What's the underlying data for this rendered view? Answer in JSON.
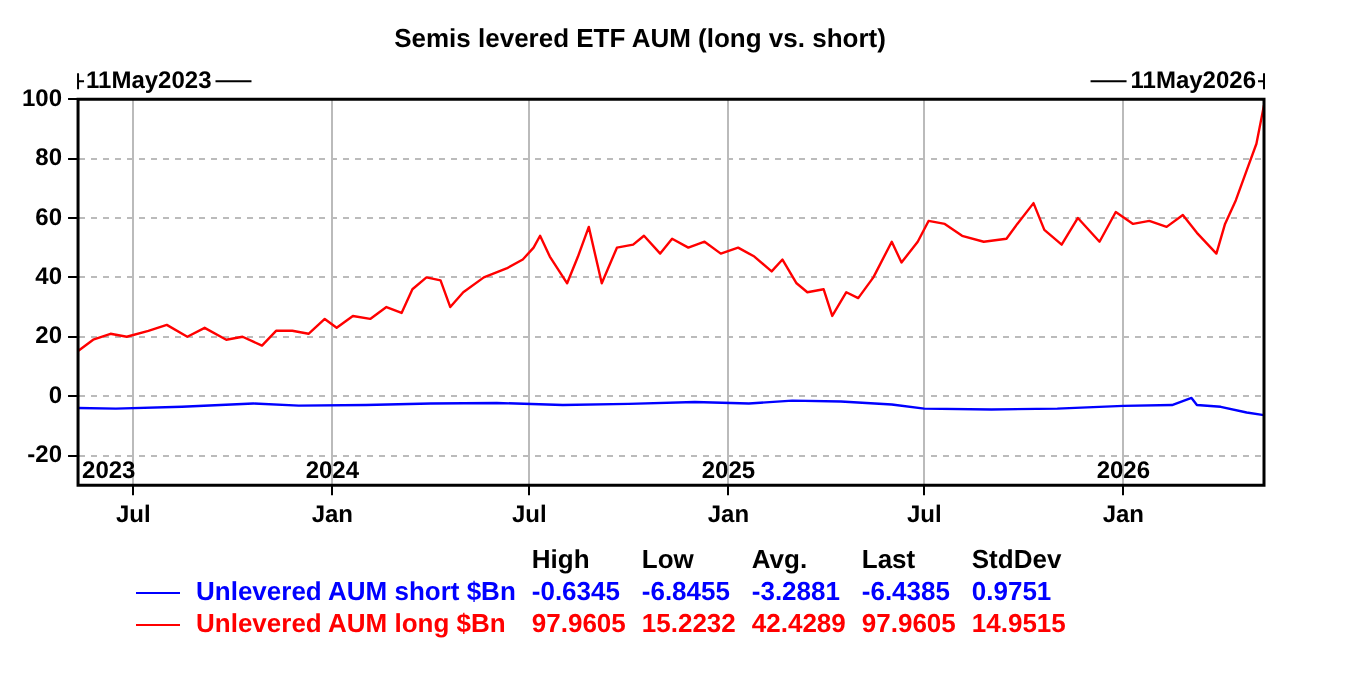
{
  "chart_data": {
    "type": "line",
    "title": "Semis levered ETF AUM (long vs. short)",
    "xlim": [
      "2023-05-11",
      "2026-05-11"
    ],
    "xticks": [
      {
        "value": "2023-07-01",
        "label": "Jul"
      },
      {
        "value": "2024-01-01",
        "label": "Jan"
      },
      {
        "value": "2024-07-01",
        "label": "Jul"
      },
      {
        "value": "2025-01-01",
        "label": "Jan"
      },
      {
        "value": "2025-07-01",
        "label": "Jul"
      },
      {
        "value": "2026-01-01",
        "label": "Jan"
      }
    ],
    "x2lim": [
      "2023-05-11",
      "2026-05-11"
    ],
    "x2ticks": [
      {
        "value": "2023-05-11",
        "label": "2023"
      },
      {
        "value": "2024-01-01",
        "label": "2024"
      },
      {
        "value": "2025-01-01",
        "label": "2025"
      },
      {
        "value": "2026-01-01",
        "label": "2026"
      }
    ],
    "ylim": [
      -30,
      100
    ],
    "yticks": [
      -20,
      0,
      20,
      40,
      60,
      80,
      100
    ],
    "grid": true,
    "legend": "bottom",
    "marker": "none",
    "line_style": "solid",
    "series": [
      {
        "name": "Unlevered AUM short $Bn",
        "color": "#0000ff",
        "x": [
          "2023-05-11",
          "2023-06-15",
          "2023-08-15",
          "2023-10-20",
          "2023-12-01",
          "2024-02-01",
          "2024-04-01",
          "2024-06-01",
          "2024-08-01",
          "2024-10-01",
          "2024-12-01",
          "2025-01-20",
          "2025-03-01",
          "2025-04-15",
          "2025-06-01",
          "2025-07-01",
          "2025-09-01",
          "2025-11-01",
          "2026-01-01",
          "2026-02-15",
          "2026-03-05",
          "2026-03-10",
          "2026-04-01",
          "2026-04-25",
          "2026-05-11"
        ],
        "values": [
          -4.0,
          -4.2,
          -3.6,
          -2.5,
          -3.2,
          -3.0,
          -2.5,
          -2.3,
          -3.0,
          -2.6,
          -2.0,
          -2.5,
          -1.5,
          -1.8,
          -2.8,
          -4.2,
          -4.5,
          -4.2,
          -3.3,
          -3.0,
          -0.6,
          -3.0,
          -3.6,
          -5.5,
          -6.4
        ]
      },
      {
        "name": "Unlevered AUM long $Bn",
        "color": "#ff0000",
        "x": [
          "2023-05-11",
          "2023-05-25",
          "2023-06-10",
          "2023-06-25",
          "2023-07-15",
          "2023-08-01",
          "2023-08-20",
          "2023-09-05",
          "2023-09-25",
          "2023-10-10",
          "2023-10-28",
          "2023-11-10",
          "2023-11-25",
          "2023-12-10",
          "2023-12-25",
          "2024-01-05",
          "2024-01-20",
          "2024-02-05",
          "2024-02-20",
          "2024-03-05",
          "2024-03-15",
          "2024-03-28",
          "2024-04-10",
          "2024-04-19",
          "2024-05-01",
          "2024-05-20",
          "2024-06-10",
          "2024-06-25",
          "2024-07-05",
          "2024-07-11",
          "2024-07-20",
          "2024-08-05",
          "2024-08-15",
          "2024-08-25",
          "2024-09-06",
          "2024-09-20",
          "2024-10-05",
          "2024-10-15",
          "2024-10-30",
          "2024-11-10",
          "2024-11-25",
          "2024-12-10",
          "2024-12-25",
          "2025-01-10",
          "2025-01-25",
          "2025-02-10",
          "2025-02-20",
          "2025-03-05",
          "2025-03-15",
          "2025-03-30",
          "2025-04-07",
          "2025-04-20",
          "2025-05-01",
          "2025-05-15",
          "2025-06-01",
          "2025-06-10",
          "2025-06-25",
          "2025-07-05",
          "2025-07-20",
          "2025-08-05",
          "2025-08-25",
          "2025-09-15",
          "2025-09-25",
          "2025-10-10",
          "2025-10-20",
          "2025-11-05",
          "2025-11-20",
          "2025-12-10",
          "2025-12-25",
          "2026-01-10",
          "2026-01-25",
          "2026-02-10",
          "2026-02-25",
          "2026-03-10",
          "2026-03-28",
          "2026-04-05",
          "2026-04-15",
          "2026-04-25",
          "2026-05-04",
          "2026-05-11"
        ],
        "values": [
          15.2,
          19,
          21,
          20,
          22,
          24,
          20,
          23,
          19,
          20,
          17,
          22,
          22,
          21,
          26,
          23,
          27,
          26,
          30,
          28,
          36,
          40,
          39,
          30,
          35,
          40,
          43,
          46,
          50,
          54,
          47,
          38,
          47,
          57,
          38,
          50,
          51,
          54,
          48,
          53,
          50,
          52,
          48,
          50,
          47,
          42,
          46,
          38,
          35,
          36,
          27,
          35,
          33,
          40,
          52,
          45,
          52,
          59,
          58,
          54,
          52,
          53,
          58,
          65,
          56,
          51,
          60,
          52,
          62,
          58,
          59,
          57,
          61,
          55,
          48,
          58,
          66,
          76,
          85,
          98.0
        ]
      }
    ],
    "annotations": [
      "11May2023",
      "11May2026",
      "High",
      "Low",
      "Avg.",
      "Last",
      "StdDev",
      "-0.6345",
      "-6.8455",
      "-3.2881",
      "-6.4385",
      "0.9751",
      "97.9605",
      "15.2232",
      "42.4289",
      "97.9605",
      "14.9515"
    ]
  }
}
